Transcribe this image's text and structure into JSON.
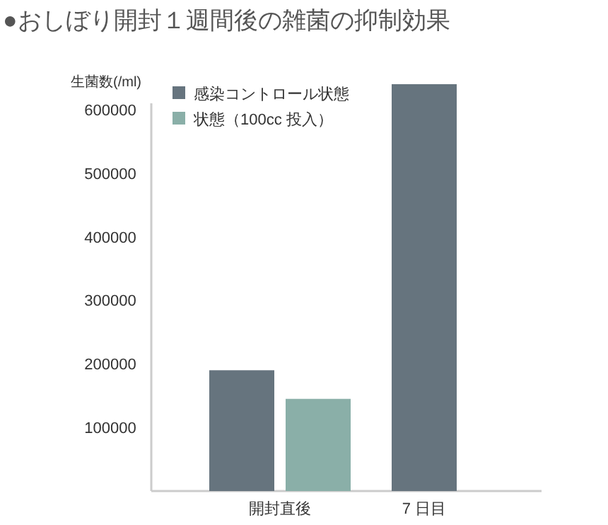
{
  "chart_data": {
    "type": "bar",
    "title": "●おしぼり開封１週間後の雑菌の抑制効果",
    "ylabel": "生菌数(/ml)",
    "categories": [
      "開封直後",
      "7 日目"
    ],
    "series": [
      {
        "name": "感染コントロール状態",
        "color": "#66747e",
        "values": [
          190000,
          640000
        ]
      },
      {
        "name": "状態（100cc 投入）",
        "color": "#8aafa8",
        "values": [
          145000,
          null
        ]
      }
    ],
    "ylim": [
      0,
      650000
    ],
    "yticks": [
      100000,
      200000,
      300000,
      400000,
      500000,
      600000
    ],
    "grid": false,
    "legend": "top left"
  }
}
